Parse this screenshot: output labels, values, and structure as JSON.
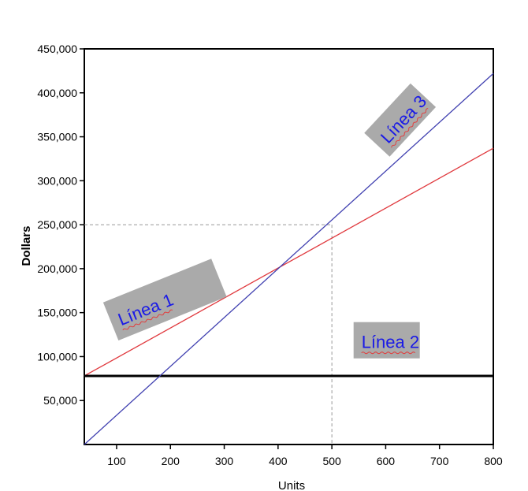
{
  "chart_data": {
    "type": "line",
    "xlabel": "Units",
    "ylabel": "Dollars",
    "xlim": [
      40,
      800
    ],
    "ylim": [
      0,
      450000
    ],
    "x_ticks": [
      100,
      200,
      300,
      400,
      500,
      600,
      700,
      800
    ],
    "x_tick_labels": [
      "100",
      "200",
      "300",
      "400",
      "500",
      "600",
      "700",
      "800"
    ],
    "y_ticks": [
      50000,
      100000,
      150000,
      200000,
      250000,
      300000,
      350000,
      400000,
      450000
    ],
    "y_tick_labels": [
      "50,000",
      "100,000",
      "150,000",
      "200,000",
      "250,000",
      "300,000",
      "350,000",
      "400,000",
      "450,000"
    ],
    "grid": false,
    "legend": "none",
    "series": [
      {
        "x": [
          40,
          800
        ],
        "y": [
          78000,
          337000
        ],
        "color": "#e0393e"
      },
      {
        "x": [
          40,
          800
        ],
        "y": [
          78000,
          78000
        ],
        "color": "#000000"
      },
      {
        "x": [
          40,
          800
        ],
        "y": [
          0,
          422000
        ],
        "color": "#4040b0"
      }
    ],
    "reference": {
      "x": 500,
      "y": 250000,
      "color": "#999999",
      "style": "dashed"
    },
    "annotations": [
      {
        "text": "Línea 1",
        "x": 105,
        "y": 140000,
        "rotation": -22
      },
      {
        "text": "Línea 2",
        "x": 555,
        "y": 115000,
        "rotation": 0
      },
      {
        "text": "Línea 3",
        "x": 598,
        "y": 345000,
        "rotation": -47
      }
    ],
    "annotation_box_color": "#aaaaaa",
    "annotation_text_color": "#1a1ae6"
  }
}
